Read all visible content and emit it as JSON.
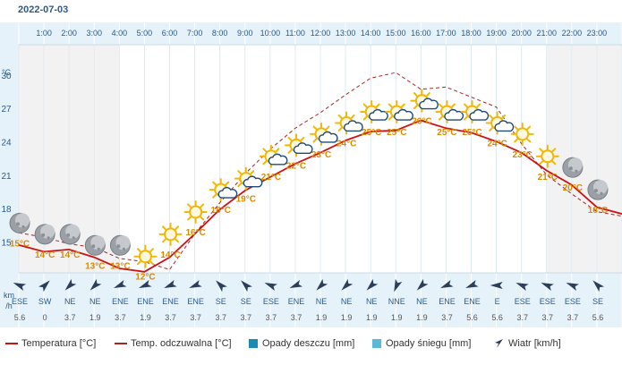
{
  "date": "2022-07-03",
  "unit_temp": "°C",
  "unit_wind": [
    "km",
    "/h"
  ],
  "colors": {
    "temperature": "#cc1111",
    "feels_like": "#aa2222",
    "rain": "#1b8bb4",
    "snow": "#5bb8d8",
    "label": "#d98a00",
    "header_bg": "#e5f2fa"
  },
  "legend": [
    {
      "label": "Temperatura [°C]",
      "kind": "line",
      "color": "#cc1111"
    },
    {
      "label": "Temp. odczuwalna [°C]",
      "kind": "line",
      "color": "#aa2222"
    },
    {
      "label": "Opady deszczu [mm]",
      "kind": "box",
      "color": "#1b8bb4"
    },
    {
      "label": "Opady śniegu [mm]",
      "kind": "box",
      "color": "#5bb8d8"
    },
    {
      "label": "Wiatr [km/h]",
      "kind": "arrow",
      "color": "#2c3e5a"
    }
  ],
  "chart_data": {
    "type": "line",
    "categories": [
      "1:00",
      "2:00",
      "3:00",
      "4:00",
      "5:00",
      "6:00",
      "7:00",
      "8:00",
      "9:00",
      "10:00",
      "11:00",
      "12:00",
      "13:00",
      "14:00",
      "15:00",
      "16:00",
      "17:00",
      "18:00",
      "19:00",
      "20:00",
      "21:00",
      "22:00",
      "23:00"
    ],
    "yticks": [
      15,
      18,
      21,
      24,
      27,
      30
    ],
    "ylim": [
      12.3,
      32.8
    ],
    "series": [
      {
        "name": "Temperatura [°C]",
        "values": [
          14.2,
          14.4,
          13.7,
          12.7,
          12.4,
          13.7,
          15.8,
          18.0,
          19.7,
          20.9,
          22.1,
          23.1,
          24.2,
          25.0,
          25.1,
          26.0,
          25.3,
          24.9,
          24.1,
          23.1,
          21.5,
          20.2,
          18.2
        ]
      },
      {
        "name": "Temp. odczuwalna [°C]",
        "values": [
          15.5,
          14.9,
          14.6,
          13.6,
          13.3,
          12.6,
          15.8,
          18.6,
          21.2,
          23.4,
          25.3,
          26.7,
          28.3,
          29.8,
          30.3,
          28.8,
          29.0,
          28.1,
          27.2,
          23.9,
          21.1,
          19.4,
          17.8
        ]
      }
    ],
    "point_labels": [
      "15°C",
      "14°C",
      "14°C",
      "13°C",
      "13°C",
      "12°C",
      "14°C",
      "16°C",
      "18°C",
      "19°C",
      "21°C",
      "22°C",
      "23°C",
      "24°C",
      "25°C",
      "25°C",
      "26°C",
      "25°C",
      "25°C",
      "24°C",
      "23°C",
      "21°C",
      "20°C",
      "18°C"
    ],
    "label_temps": [
      15,
      14,
      14,
      13,
      13,
      12,
      14,
      16,
      18,
      19,
      21,
      22,
      23,
      24,
      25,
      25,
      26,
      25,
      25,
      24,
      23,
      21,
      20,
      18
    ],
    "icons": [
      "moon-cloud",
      "moon-cloud",
      "moon-cloud",
      "moon-cloud",
      "moon-cloud",
      "sun",
      "sun",
      "sun",
      "sun-cloud",
      "sun-cloud",
      "sun-cloud",
      "sun-cloud",
      "sun-cloud",
      "sun-cloud",
      "sun-cloud",
      "sun-cloud",
      "sun-cloud",
      "sun-cloud",
      "sun-cloud",
      "sun-cloud",
      "sun",
      "sun",
      "moon-cloud",
      "moon-cloud"
    ],
    "wind": {
      "directions": [
        "ESE",
        "SW",
        "NE",
        "NE",
        "ENE",
        "ENE",
        "ENE",
        "ENE",
        "SE",
        "SE",
        "ESE",
        "ENE",
        "NE",
        "NE",
        "NE",
        "NNE",
        "NE",
        "ENE",
        "ENE",
        "E",
        "ESE",
        "ESE",
        "ESE",
        "SE"
      ],
      "speeds": [
        "5.6",
        "0",
        "3.7",
        "1.9",
        "3.7",
        "1.9",
        "3.7",
        "3.7",
        "3.7",
        "3.7",
        "3.7",
        "3.7",
        "1.9",
        "1.9",
        "1.9",
        "1.9",
        "1.9",
        "3.7",
        "5.6",
        "5.6",
        "3.7",
        "3.7",
        "3.7",
        "5.6"
      ]
    },
    "grid": true
  }
}
